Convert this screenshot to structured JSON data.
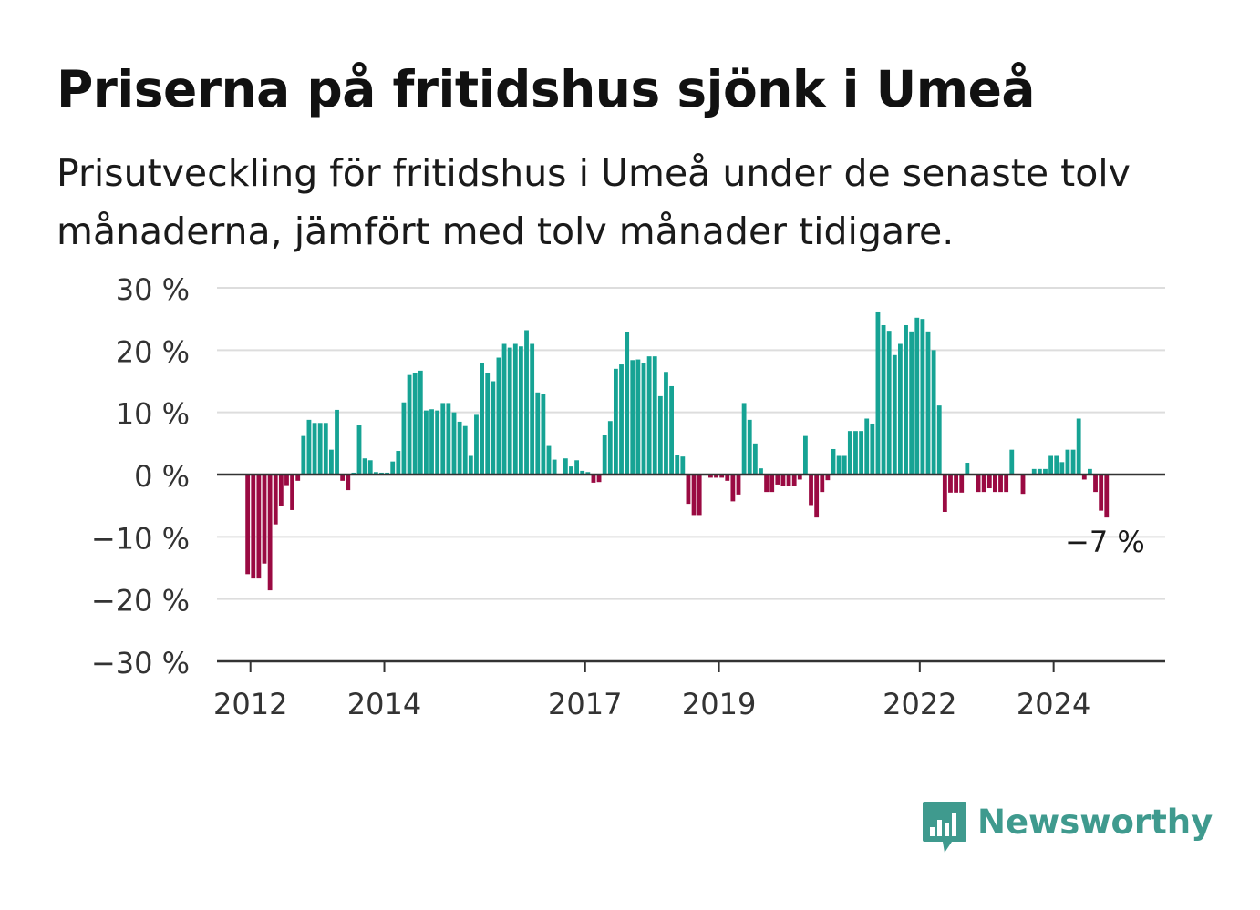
{
  "title": "Priserna på fritidshus sjönk i Umeå",
  "subtitle": "Prisutveckling för fritidshus i Umeå under de senaste tolv månaderna, jämfört med tolv månader tidigare.",
  "logo_text": "Newsworthy",
  "colors": {
    "positive": "#16a394",
    "negative": "#9a0a42",
    "grid": "#dddddd",
    "axis": "#333333"
  },
  "chart_data": {
    "type": "bar",
    "title": "",
    "xlabel": "",
    "ylabel": "",
    "ylim": [
      -30,
      30
    ],
    "y_ticks": [
      {
        "value": 30,
        "label": "30 %"
      },
      {
        "value": 20,
        "label": "20 %"
      },
      {
        "value": 10,
        "label": "10 %"
      },
      {
        "value": 0,
        "label": "0 %"
      },
      {
        "value": -10,
        "label": "−10 %"
      },
      {
        "value": -20,
        "label": "−20 %"
      },
      {
        "value": -30,
        "label": "−30 %"
      }
    ],
    "x_ticks": [
      "2012",
      "2014",
      "2017",
      "2019",
      "2022",
      "2024"
    ],
    "x_range": [
      "2011-07",
      "2025-08"
    ],
    "grid": true,
    "annotation": {
      "label": "−7 %",
      "date": "2024-10",
      "value": -7
    },
    "series": [
      {
        "dates": [
          "2011-12",
          "2012-01",
          "2012-02",
          "2012-03",
          "2012-04",
          "2012-05",
          "2012-06",
          "2012-07",
          "2012-08",
          "2012-09",
          "2012-10",
          "2012-11",
          "2012-12",
          "2013-01",
          "2013-02",
          "2013-03",
          "2013-04",
          "2013-05",
          "2013-06",
          "2013-07",
          "2013-08",
          "2013-09",
          "2013-10",
          "2013-11",
          "2013-12",
          "2014-01",
          "2014-02",
          "2014-03",
          "2014-04",
          "2014-05",
          "2014-06",
          "2014-07",
          "2014-08",
          "2014-09",
          "2014-10",
          "2014-11",
          "2014-12",
          "2015-01",
          "2015-02",
          "2015-03",
          "2015-04",
          "2015-05",
          "2015-06",
          "2015-07",
          "2015-08",
          "2015-09",
          "2015-10",
          "2015-11",
          "2015-12",
          "2016-01",
          "2016-02",
          "2016-03",
          "2016-04",
          "2016-05",
          "2016-06",
          "2016-07",
          "2016-08",
          "2016-09",
          "2016-10",
          "2016-11",
          "2016-12",
          "2017-01",
          "2017-02",
          "2017-03",
          "2017-04",
          "2017-05",
          "2017-06",
          "2017-07",
          "2017-08",
          "2017-09",
          "2017-10",
          "2017-11",
          "2017-12",
          "2018-01",
          "2018-02",
          "2018-03",
          "2018-04",
          "2018-05",
          "2018-06",
          "2018-07",
          "2018-08",
          "2018-09",
          "2018-10",
          "2018-11",
          "2018-12",
          "2019-01",
          "2019-02",
          "2019-03",
          "2019-04",
          "2019-05",
          "2019-06",
          "2019-07",
          "2019-08",
          "2019-09",
          "2019-10",
          "2019-11",
          "2019-12",
          "2020-01",
          "2020-02",
          "2020-03",
          "2020-04",
          "2020-05",
          "2020-06",
          "2020-07",
          "2020-08",
          "2020-09",
          "2020-10",
          "2020-11",
          "2020-12",
          "2021-01",
          "2021-02",
          "2021-03",
          "2021-04",
          "2021-05",
          "2021-06",
          "2021-07",
          "2021-08",
          "2021-09",
          "2021-10",
          "2021-11",
          "2021-12",
          "2022-01",
          "2022-02",
          "2022-03",
          "2022-04",
          "2022-05",
          "2022-06",
          "2022-07",
          "2022-08",
          "2022-09",
          "2022-10",
          "2022-11",
          "2022-12",
          "2023-01",
          "2023-02",
          "2023-03",
          "2023-04",
          "2023-05",
          "2023-06",
          "2023-07",
          "2023-08",
          "2023-09",
          "2023-10",
          "2023-11",
          "2023-12",
          "2024-01",
          "2024-02",
          "2024-03",
          "2024-04",
          "2024-05",
          "2024-06",
          "2024-07",
          "2024-08",
          "2024-09",
          "2024-10"
        ],
        "values": [
          -16,
          -16.7,
          -16.7,
          -14.3,
          -18.6,
          -8,
          -5,
          -1.7,
          -5.7,
          -1,
          6.2,
          8.8,
          8.3,
          8.3,
          8.3,
          4,
          10.4,
          -1,
          -2.5,
          0.3,
          7.9,
          2.6,
          2.3,
          0.4,
          0.3,
          0.3,
          2.1,
          3.8,
          11.6,
          16,
          16.3,
          16.7,
          10.3,
          10.5,
          10.3,
          11.5,
          11.5,
          10,
          8.5,
          7.8,
          3,
          9.6,
          18,
          16.3,
          15,
          18.8,
          21,
          20.4,
          21,
          20.6,
          23.2,
          21,
          13.2,
          13,
          4.6,
          2.4,
          0.1,
          2.6,
          1.3,
          2.3,
          0.6,
          0.4,
          -1.3,
          -1.2,
          6.3,
          8.6,
          17,
          17.7,
          22.9,
          18.4,
          18.5,
          17.9,
          19,
          19,
          12.6,
          16.5,
          14.2,
          3.1,
          2.9,
          -4.7,
          -6.5,
          -6.5,
          0,
          -0.5,
          -0.5,
          -0.5,
          -1,
          -4.3,
          -3.2,
          11.5,
          8.8,
          5,
          1,
          -2.8,
          -2.8,
          -1.6,
          -1.8,
          -1.8,
          -1.8,
          -0.8,
          6.2,
          -4.9,
          -6.9,
          -2.8,
          -0.9,
          4.1,
          3,
          3,
          7,
          7,
          7,
          9,
          8.2,
          26.2,
          24,
          23.1,
          19.2,
          21,
          24,
          23,
          25.2,
          25,
          23,
          20,
          11.1,
          -6,
          -2.9,
          -2.9,
          -2.9,
          1.9,
          0,
          -2.8,
          -2.8,
          -2.2,
          -2.8,
          -2.8,
          -2.8,
          4,
          0,
          -3.1,
          0,
          0.9,
          0.9,
          0.9,
          3,
          3,
          2,
          4,
          4,
          9,
          -0.8,
          0.9,
          -2.8,
          -5.8,
          -6.9
        ]
      }
    ]
  }
}
